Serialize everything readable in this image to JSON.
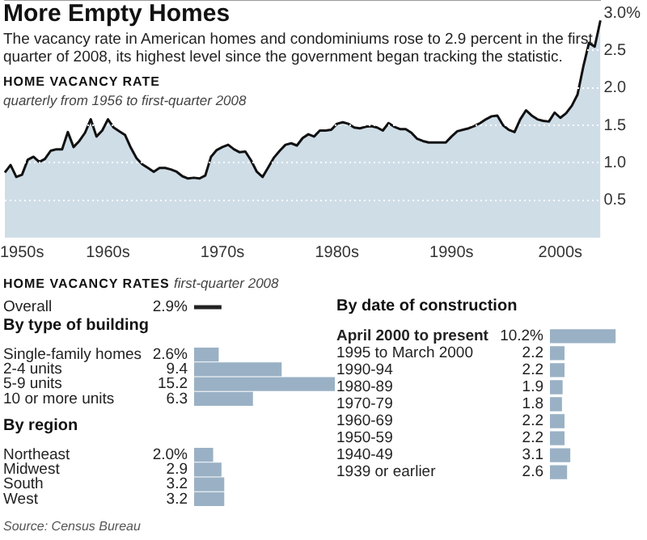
{
  "chart_data": [
    {
      "type": "area",
      "title": "More Empty Homes",
      "subtitle": "The vacancy rate in American homes and condominiums rose to 2.9 percent in the first quarter of 2008, its highest level since the government began tracking the statistic.",
      "annotations": [
        "HOME VACANCY RATE",
        "quarterly from 1956 to first-quarter 2008"
      ],
      "categories": [
        null,
        null,
        null,
        "1950s",
        null,
        null,
        null,
        null,
        null,
        null,
        null,
        null,
        null,
        null,
        null,
        null,
        null,
        null,
        "1960s",
        null,
        null,
        null,
        null,
        null,
        null,
        null,
        null,
        null,
        null,
        null,
        null,
        null,
        null,
        null,
        null,
        null,
        null,
        null,
        "1970s",
        null,
        null,
        null,
        null,
        null,
        null,
        null,
        null,
        null,
        null,
        null,
        null,
        null,
        null,
        null,
        null,
        null,
        null,
        null,
        "1980s",
        null,
        null,
        null,
        null,
        null,
        null,
        null,
        null,
        null,
        null,
        null,
        null,
        null,
        null,
        null,
        null,
        null,
        null,
        null,
        "1990s",
        null,
        null,
        null,
        null,
        null,
        null,
        null,
        null,
        null,
        null,
        null,
        null,
        null,
        null,
        null,
        null,
        null,
        null,
        "2000s",
        null,
        null,
        null,
        null,
        null,
        null,
        null
      ],
      "values": [
        0.87,
        0.97,
        0.81,
        0.84,
        1.04,
        1.08,
        1.01,
        1.05,
        1.16,
        1.18,
        1.18,
        1.41,
        1.21,
        1.29,
        1.4,
        1.58,
        1.35,
        1.43,
        1.58,
        1.47,
        1.42,
        1.37,
        1.2,
        1.06,
        0.98,
        0.93,
        0.88,
        0.93,
        0.93,
        0.91,
        0.88,
        0.82,
        0.79,
        0.8,
        0.79,
        0.83,
        1.08,
        1.17,
        1.21,
        1.24,
        1.18,
        1.14,
        1.15,
        1.03,
        0.88,
        0.81,
        0.94,
        1.07,
        1.16,
        1.24,
        1.26,
        1.23,
        1.33,
        1.38,
        1.35,
        1.43,
        1.43,
        1.44,
        1.52,
        1.54,
        1.52,
        1.47,
        1.46,
        1.48,
        1.49,
        1.47,
        1.43,
        1.53,
        1.48,
        1.45,
        1.45,
        1.4,
        1.32,
        1.29,
        1.27,
        1.27,
        1.27,
        1.27,
        1.35,
        1.42,
        1.44,
        1.46,
        1.49,
        1.53,
        1.58,
        1.62,
        1.63,
        1.5,
        1.44,
        1.41,
        1.58,
        1.7,
        1.63,
        1.58,
        1.56,
        1.55,
        1.67,
        1.6,
        1.66,
        1.76,
        1.91,
        2.28,
        2.6,
        2.55,
        2.9
      ],
      "color": "#cfdde7",
      "ylim": [
        0,
        3
      ],
      "yticks": [
        0.5,
        {
          "value": 1,
          "label": "1.0"
        },
        1.5,
        {
          "value": 2,
          "label": "2.0"
        },
        2.5,
        {
          "value": 3,
          "label": "3.0%"
        }
      ],
      "grid": "y"
    },
    {
      "type": "bar",
      "orientation": "horizontal",
      "title": "HOME VACANCY RATES",
      "subtitle": "first-quarter 2008",
      "categories": [
        "Overall"
      ],
      "values": [
        2.9
      ],
      "value_labels": [
        "2.9%"
      ],
      "color": "#222222"
    },
    {
      "type": "bar",
      "orientation": "horizontal",
      "title": "By type of building",
      "categories": [
        "Single-family homes",
        "2-4 units",
        "5-9 units",
        "10 or more units"
      ],
      "values": [
        2.6,
        9.4,
        15.2,
        6.3
      ],
      "value_labels": [
        "2.6%",
        "9.4",
        "15.2",
        "6.3"
      ],
      "color": "#9ab1c5"
    },
    {
      "type": "bar",
      "orientation": "horizontal",
      "title": "By region",
      "categories": [
        "Northeast",
        "Midwest",
        "South",
        "West"
      ],
      "values": [
        2.0,
        2.9,
        3.2,
        3.2
      ],
      "value_labels": [
        "2.0%",
        "2.9",
        "3.2",
        "3.2"
      ],
      "color": "#9ab1c5",
      "annotations": [
        "Source: Census Bureau"
      ]
    },
    {
      "type": "bar",
      "orientation": "horizontal",
      "title": "By date of construction",
      "categories": [
        "April 2000 to present",
        "1995 to March 2000",
        "1990-94",
        "1980-89",
        "1970-79",
        "1960-69",
        "1950-59",
        "1940-49",
        "1939 or earlier"
      ],
      "values": [
        10.2,
        2.2,
        2.2,
        1.9,
        1.8,
        2.2,
        2.2,
        3.1,
        2.6
      ],
      "value_labels": [
        "10.2%",
        "2.2",
        "2.2",
        "1.9",
        "1.8",
        "2.2",
        "2.2",
        "3.1",
        "2.6"
      ],
      "color": "#9ab1c5"
    }
  ]
}
